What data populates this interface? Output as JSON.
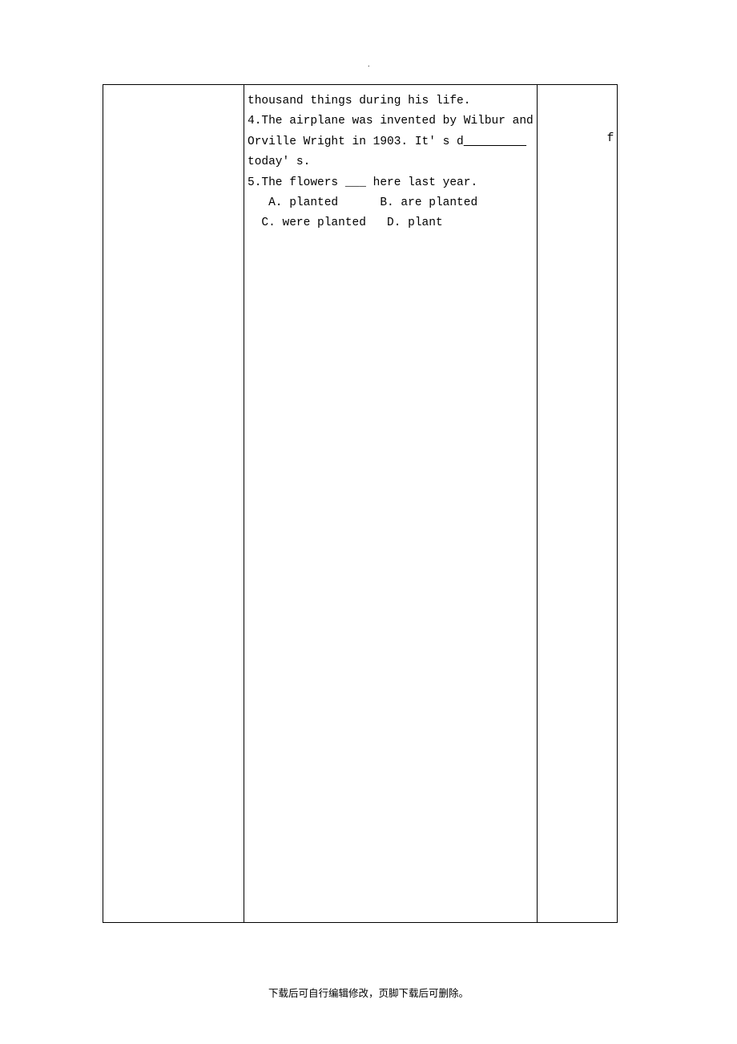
{
  "dot": ".",
  "content": {
    "line1": "thousand things during his life.",
    "line2": "4.The airplane was invented by Wilbur and",
    "line3a": "Orville Wright in 1903. It' s d",
    "line3_blank": "         ",
    "line3_f": "f",
    "line4": "today' s.",
    "line5": "5.The flowers ___ here last year.",
    "line6": "   A. planted      B. are planted",
    "line7": "  C. were planted   D. plant"
  },
  "footer": "下载后可自行编辑修改，页脚下载后可删除。"
}
